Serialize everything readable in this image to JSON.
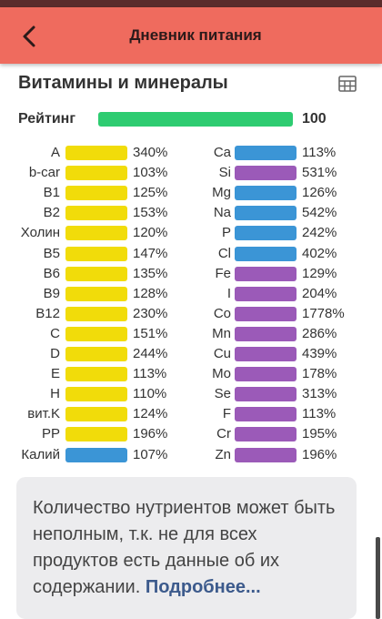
{
  "header": {
    "title": "Дневник питания"
  },
  "section": {
    "title": "Витамины и минералы"
  },
  "rating": {
    "label": "Рейтинг",
    "value": "100",
    "bar_color": "#2ecc71"
  },
  "colors": {
    "header_bg": "#ef6b5e",
    "yellow": "#f1dc0a",
    "blue": "#3b95d6",
    "purple": "#9b5ab8"
  },
  "left_column": [
    {
      "name": "A",
      "percent": "340%",
      "color": "yellow"
    },
    {
      "name": "b-car",
      "percent": "103%",
      "color": "yellow"
    },
    {
      "name": "B1",
      "percent": "125%",
      "color": "yellow"
    },
    {
      "name": "B2",
      "percent": "153%",
      "color": "yellow"
    },
    {
      "name": "Холин",
      "percent": "120%",
      "color": "yellow"
    },
    {
      "name": "B5",
      "percent": "147%",
      "color": "yellow"
    },
    {
      "name": "B6",
      "percent": "135%",
      "color": "yellow"
    },
    {
      "name": "B9",
      "percent": "128%",
      "color": "yellow"
    },
    {
      "name": "B12",
      "percent": "230%",
      "color": "yellow"
    },
    {
      "name": "C",
      "percent": "151%",
      "color": "yellow"
    },
    {
      "name": "D",
      "percent": "244%",
      "color": "yellow"
    },
    {
      "name": "E",
      "percent": "113%",
      "color": "yellow"
    },
    {
      "name": "H",
      "percent": "110%",
      "color": "yellow"
    },
    {
      "name": "вит.K",
      "percent": "124%",
      "color": "yellow"
    },
    {
      "name": "PP",
      "percent": "196%",
      "color": "yellow"
    },
    {
      "name": "Калий",
      "percent": "107%",
      "color": "blue"
    }
  ],
  "right_column": [
    {
      "name": "Ca",
      "percent": "113%",
      "color": "blue"
    },
    {
      "name": "Si",
      "percent": "531%",
      "color": "purple"
    },
    {
      "name": "Mg",
      "percent": "126%",
      "color": "blue"
    },
    {
      "name": "Na",
      "percent": "542%",
      "color": "blue"
    },
    {
      "name": "P",
      "percent": "242%",
      "color": "blue"
    },
    {
      "name": "Cl",
      "percent": "402%",
      "color": "blue"
    },
    {
      "name": "Fe",
      "percent": "129%",
      "color": "purple"
    },
    {
      "name": "I",
      "percent": "204%",
      "color": "purple"
    },
    {
      "name": "Co",
      "percent": "1778%",
      "color": "purple"
    },
    {
      "name": "Mn",
      "percent": "286%",
      "color": "purple"
    },
    {
      "name": "Cu",
      "percent": "439%",
      "color": "purple"
    },
    {
      "name": "Mo",
      "percent": "178%",
      "color": "purple"
    },
    {
      "name": "Se",
      "percent": "313%",
      "color": "purple"
    },
    {
      "name": "F",
      "percent": "113%",
      "color": "purple"
    },
    {
      "name": "Cr",
      "percent": "195%",
      "color": "purple"
    },
    {
      "name": "Zn",
      "percent": "196%",
      "color": "purple"
    }
  ],
  "info": {
    "text": "Количество нутриентов может быть неполным, т.к. не для всех продуктов есть данные об их содержании. ",
    "link": "Подробнее..."
  },
  "icons": {
    "back": "chevron-left-icon",
    "table": "table-grid-icon"
  }
}
